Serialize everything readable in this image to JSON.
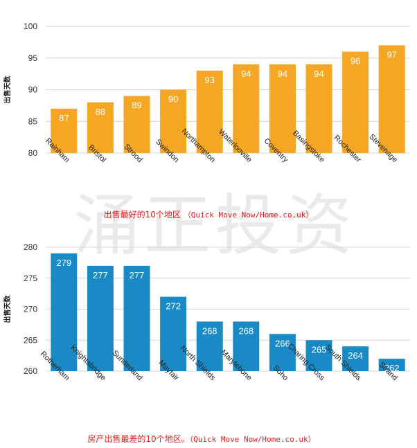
{
  "watermark": "涌正投资",
  "captions": [
    {
      "main": "出售最好的10个地区 ",
      "source": "（Quick Move Now/Home.co.uk）"
    },
    {
      "main": "房产出售最差的10个地区。",
      "source": "（Quick Move Now/Home.co.uk）"
    }
  ],
  "chart_data": [
    {
      "type": "bar",
      "title": "出售最好的10个地区",
      "ylabel": "出售天数",
      "xlabel": "",
      "categories": [
        "Rainham",
        "Bristol",
        "Strood",
        "Swindon",
        "Northampton",
        "Waterlooville",
        "Coventry",
        "Basingstoke",
        "Rochester",
        "Stevenage"
      ],
      "values": [
        87,
        88,
        89,
        90,
        93,
        94,
        94,
        94,
        96,
        97
      ],
      "ylim": [
        80,
        100
      ],
      "yticks": [
        80,
        85,
        90,
        95,
        100
      ],
      "grid": true,
      "bar_color": "#f5a623",
      "label_color": "#ffffff"
    },
    {
      "type": "bar",
      "title": "房产出售最差的10个地区",
      "ylabel": "出售天数",
      "xlabel": "",
      "categories": [
        "Rotherham",
        "Knightsbridge",
        "Sunderland",
        "Mayfair",
        "North Shields",
        "Marylebone",
        "Soho",
        "Charing Cross",
        "South Shields",
        "Strand"
      ],
      "values": [
        279,
        277,
        277,
        272,
        268,
        268,
        266,
        265,
        264,
        262
      ],
      "ylim": [
        260,
        280
      ],
      "yticks": [
        260,
        265,
        270,
        275,
        280
      ],
      "grid": true,
      "bar_color": "#1a8ac6",
      "label_color": "#ffffff"
    }
  ]
}
